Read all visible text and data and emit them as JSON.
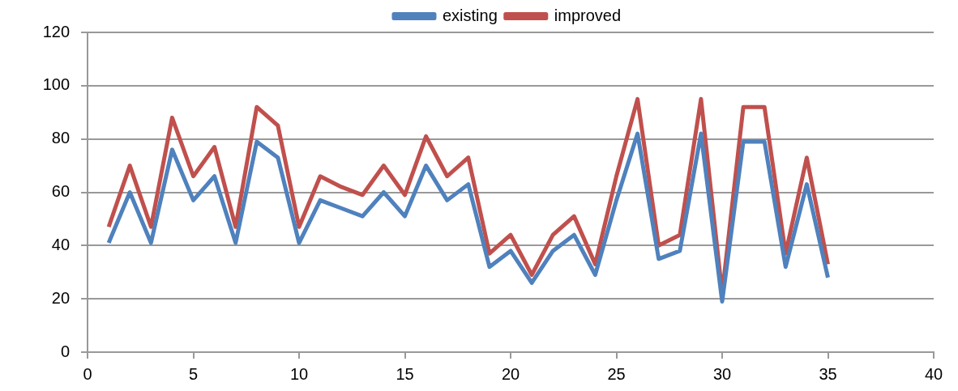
{
  "chart_data": {
    "type": "line",
    "x": [
      1,
      2,
      3,
      4,
      5,
      6,
      7,
      8,
      9,
      10,
      11,
      12,
      13,
      14,
      15,
      16,
      17,
      18,
      19,
      20,
      21,
      22,
      23,
      24,
      25,
      26,
      27,
      28,
      29,
      30,
      31,
      32,
      33,
      34,
      35
    ],
    "series": [
      {
        "name": "existing",
        "color": "#4f81bd",
        "values": [
          41,
          60,
          41,
          76,
          57,
          66,
          41,
          79,
          73,
          41,
          57,
          54,
          51,
          60,
          51,
          70,
          57,
          63,
          32,
          38,
          26,
          38,
          44,
          29,
          57,
          82,
          35,
          38,
          82,
          19,
          79,
          79,
          32,
          63,
          28
        ]
      },
      {
        "name": "improved",
        "color": "#c0504d",
        "values": [
          47,
          70,
          47,
          88,
          66,
          77,
          47,
          92,
          85,
          47,
          66,
          62,
          59,
          70,
          59,
          81,
          66,
          73,
          37,
          44,
          29,
          44,
          51,
          33,
          66,
          95,
          40,
          44,
          95,
          22,
          92,
          92,
          37,
          73,
          33
        ]
      }
    ],
    "xlim": [
      0,
      40
    ],
    "xticks": [
      0,
      5,
      10,
      15,
      20,
      25,
      30,
      35,
      40
    ],
    "ylim": [
      0,
      120
    ],
    "yticks": [
      0,
      20,
      40,
      60,
      80,
      100,
      120
    ],
    "grid": "y",
    "legend": "top",
    "marker": "none",
    "line_style": "solid"
  }
}
